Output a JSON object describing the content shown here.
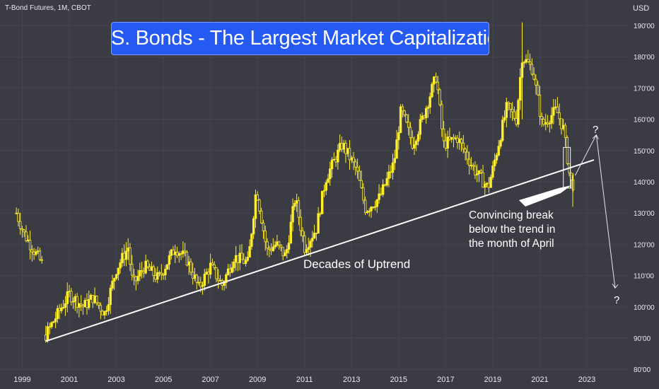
{
  "header": {
    "symbol": "T-Bond Futures, 1M, CBOT",
    "currency": "USD"
  },
  "title": "U.S. Bonds - The Largest Market Capitalization",
  "annotations": {
    "trend_label": "Decades of Uptrend",
    "break_line1": "Convincing break",
    "break_line2": "below the trend in",
    "break_line3": "the month of April",
    "q_up": "?",
    "q_down": "?"
  },
  "colors": {
    "background": "#3b3b44",
    "grid": "#45454f",
    "candle": "#ffef2a",
    "trendline": "#ffffff",
    "title_bg": "#2459f2",
    "axis_text": "#e8e8ec"
  },
  "chart_data": {
    "type": "candlestick",
    "title": "U.S. Bonds - The Largest Market Capitalization",
    "instrument": "T-Bond Futures, 1M, CBOT",
    "currency": "USD",
    "x_ticks": [
      "1999",
      "2001",
      "2003",
      "2005",
      "2007",
      "2009",
      "2011",
      "2013",
      "2015",
      "2017",
      "2019",
      "2021",
      "2023"
    ],
    "y_ticks": [
      "80'00",
      "90'00",
      "100'00",
      "110'00",
      "120'00",
      "130'00",
      "140'00",
      "150'00",
      "160'00",
      "170'00",
      "180'00",
      "190'00"
    ],
    "ylim": [
      80,
      192
    ],
    "xlim": [
      1998.6,
      2025.9
    ],
    "approx_monthly_closes_by_anchor": [
      {
        "x": 1998.75,
        "y": 130
      },
      {
        "x": 1999.1,
        "y": 123
      },
      {
        "x": 1999.5,
        "y": 118
      },
      {
        "x": 1999.9,
        "y": 113
      },
      {
        "x": 2000.0,
        "y": 91
      },
      {
        "x": 2000.6,
        "y": 99
      },
      {
        "x": 2001.0,
        "y": 104
      },
      {
        "x": 2001.6,
        "y": 100
      },
      {
        "x": 2002.0,
        "y": 103
      },
      {
        "x": 2002.5,
        "y": 98
      },
      {
        "x": 2003.0,
        "y": 112
      },
      {
        "x": 2003.5,
        "y": 119
      },
      {
        "x": 2003.7,
        "y": 107
      },
      {
        "x": 2004.2,
        "y": 113
      },
      {
        "x": 2004.8,
        "y": 109
      },
      {
        "x": 2005.5,
        "y": 119
      },
      {
        "x": 2006.0,
        "y": 115
      },
      {
        "x": 2006.5,
        "y": 106
      },
      {
        "x": 2007.0,
        "y": 113
      },
      {
        "x": 2007.5,
        "y": 107
      },
      {
        "x": 2008.0,
        "y": 116
      },
      {
        "x": 2008.6,
        "y": 114
      },
      {
        "x": 2008.95,
        "y": 138
      },
      {
        "x": 2009.4,
        "y": 118
      },
      {
        "x": 2009.8,
        "y": 120
      },
      {
        "x": 2010.2,
        "y": 116
      },
      {
        "x": 2010.6,
        "y": 135
      },
      {
        "x": 2011.0,
        "y": 119
      },
      {
        "x": 2011.5,
        "y": 125
      },
      {
        "x": 2011.9,
        "y": 141
      },
      {
        "x": 2012.6,
        "y": 152
      },
      {
        "x": 2013.2,
        "y": 144
      },
      {
        "x": 2013.6,
        "y": 131
      },
      {
        "x": 2014.2,
        "y": 135
      },
      {
        "x": 2014.8,
        "y": 146
      },
      {
        "x": 2015.1,
        "y": 163
      },
      {
        "x": 2015.6,
        "y": 152
      },
      {
        "x": 2016.0,
        "y": 160
      },
      {
        "x": 2016.6,
        "y": 174
      },
      {
        "x": 2016.9,
        "y": 152
      },
      {
        "x": 2017.5,
        "y": 154
      },
      {
        "x": 2018.2,
        "y": 144
      },
      {
        "x": 2018.8,
        "y": 138
      },
      {
        "x": 2019.0,
        "y": 144
      },
      {
        "x": 2019.6,
        "y": 164
      },
      {
        "x": 2020.0,
        "y": 160
      },
      {
        "x": 2020.25,
        "y": 180
      },
      {
        "x": 2020.7,
        "y": 176
      },
      {
        "x": 2021.1,
        "y": 158
      },
      {
        "x": 2021.7,
        "y": 163
      },
      {
        "x": 2022.0,
        "y": 157
      },
      {
        "x": 2022.3,
        "y": 140
      },
      {
        "x": 2022.45,
        "y": 139
      }
    ],
    "trendline": {
      "from": {
        "x": 2000.0,
        "y": 89
      },
      "to": {
        "x": 2023.3,
        "y": 147
      }
    },
    "projection_up": {
      "from": {
        "x": 2022.5,
        "y": 142
      },
      "to": {
        "x": 2023.4,
        "y": 155
      }
    },
    "projection_down": {
      "from": {
        "x": 2023.4,
        "y": 155
      },
      "to": {
        "x": 2024.2,
        "y": 106
      }
    },
    "highlight_box": {
      "x": [
        2022.0,
        2022.3
      ],
      "y": [
        138,
        151
      ]
    },
    "grid": true
  }
}
